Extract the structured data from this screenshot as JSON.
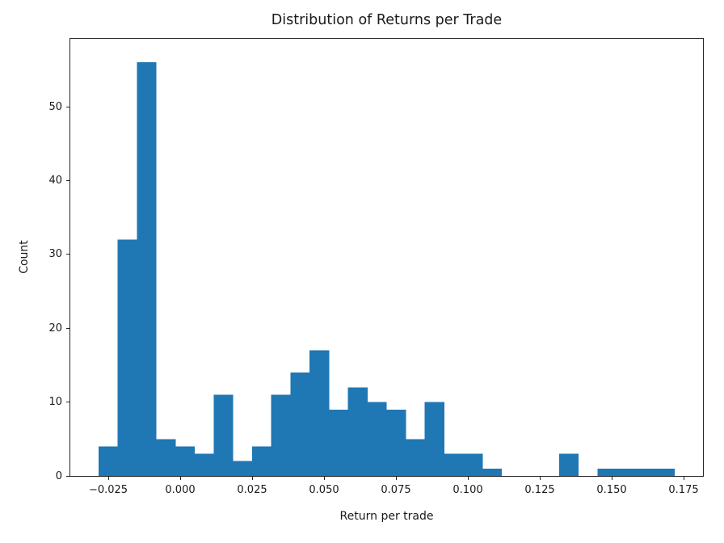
{
  "title": "Distribution of Returns per Trade",
  "chart_data": {
    "type": "bar",
    "subtype": "histogram",
    "title": "Distribution of Returns per Trade",
    "xlabel": "Return per trade",
    "ylabel": "Count",
    "bar_color": "#1f77b4",
    "spine_color": "#262626",
    "bin_start": -0.02837,
    "bin_width": 0.006671,
    "counts": [
      4,
      32,
      56,
      5,
      4,
      3,
      11,
      2,
      4,
      11,
      14,
      17,
      9,
      12,
      10,
      9,
      5,
      10,
      3,
      3,
      1,
      0,
      0,
      0,
      3,
      0,
      1,
      1,
      1,
      1
    ],
    "xlim": [
      -0.0382,
      0.18174
    ],
    "ylim": [
      0,
      59.2
    ],
    "grid": false,
    "legend": null,
    "x_ticks": [
      {
        "value": -0.025,
        "label": "−0.025"
      },
      {
        "value": 0.0,
        "label": "0.000"
      },
      {
        "value": 0.025,
        "label": "0.025"
      },
      {
        "value": 0.05,
        "label": "0.050"
      },
      {
        "value": 0.075,
        "label": "0.075"
      },
      {
        "value": 0.1,
        "label": "0.100"
      },
      {
        "value": 0.125,
        "label": "0.125"
      },
      {
        "value": 0.15,
        "label": "0.150"
      },
      {
        "value": 0.175,
        "label": "0.175"
      }
    ],
    "y_ticks": [
      {
        "value": 0,
        "label": "0"
      },
      {
        "value": 10,
        "label": "10"
      },
      {
        "value": 20,
        "label": "20"
      },
      {
        "value": 30,
        "label": "30"
      },
      {
        "value": 40,
        "label": "40"
      },
      {
        "value": 50,
        "label": "50"
      }
    ]
  }
}
